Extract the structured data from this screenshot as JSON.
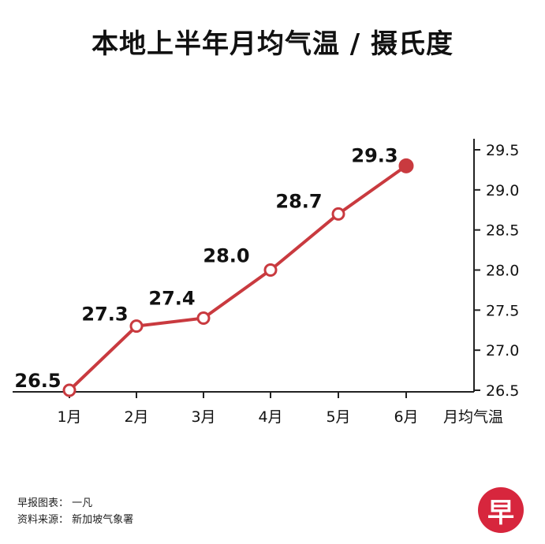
{
  "title": "本地上半年月均气温 / 摄氏度",
  "credits": {
    "chart_by": "早报图表：  一凡",
    "source": "资料来源：  新加坡气象署"
  },
  "logo_text": "早",
  "colors": {
    "line": "#c93a3f",
    "axis": "#222222",
    "logo": "#d7263d"
  },
  "chart_data": {
    "type": "line",
    "title": "本地上半年月均气温 / 摄氏度",
    "categories": [
      "1月",
      "2月",
      "3月",
      "4月",
      "5月",
      "6月"
    ],
    "values": [
      26.5,
      27.3,
      27.4,
      28.0,
      28.7,
      29.3
    ],
    "data_labels": [
      "26.5",
      "27.3",
      "27.4",
      "28.0",
      "28.7",
      "29.3"
    ],
    "xlabel": "月均气温",
    "ylabel": "",
    "ylim": [
      26.5,
      29.5
    ],
    "yticks": [
      "26.5",
      "27.0",
      "27.5",
      "28.0",
      "28.5",
      "29.0",
      "29.5"
    ],
    "y_axis_side": "right",
    "grid": false,
    "last_point_filled": true
  }
}
